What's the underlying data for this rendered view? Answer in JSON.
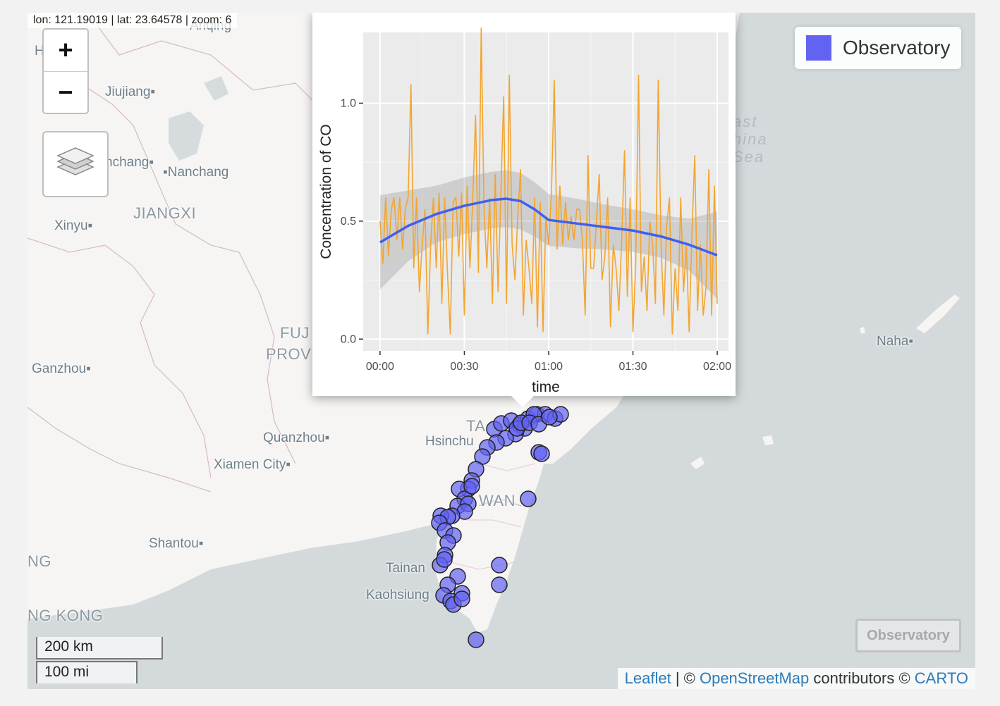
{
  "coords_readout": "lon: 121.19019 | lat: 23.64578 | zoom: 6",
  "zoom": {
    "in_label": "+",
    "out_label": "−"
  },
  "places": [
    {
      "id": "huangshi",
      "text": "H     shi",
      "big": false,
      "sea": false
    },
    {
      "id": "anqing",
      "text": "Anqing",
      "big": false,
      "sea": false
    },
    {
      "id": "jiujiang",
      "text": "Jiujiang",
      "big": false,
      "sea": false
    },
    {
      "id": "nanchang-a",
      "text": "nchang",
      "big": false,
      "sea": false
    },
    {
      "id": "nanchang-b",
      "text": "Nanchang",
      "big": false,
      "sea": false
    },
    {
      "id": "jiangxi",
      "text": "JIANGXI",
      "big": true,
      "sea": false
    },
    {
      "id": "xinyu",
      "text": "Xinyu",
      "big": false,
      "sea": false
    },
    {
      "id": "fujian",
      "text": "FUJ",
      "big": true,
      "sea": false
    },
    {
      "id": "province",
      "text": "PROV",
      "big": true,
      "sea": false
    },
    {
      "id": "ganzhou",
      "text": "Ganzhou",
      "big": false,
      "sea": false
    },
    {
      "id": "quanzhou",
      "text": "Quanzhou",
      "big": false,
      "sea": false
    },
    {
      "id": "xiamen",
      "text": "Xiamen City",
      "big": false,
      "sea": false
    },
    {
      "id": "shantou",
      "text": "Shantou",
      "big": false,
      "sea": false
    },
    {
      "id": "guangdong",
      "text": "NG",
      "big": true,
      "sea": false
    },
    {
      "id": "hongkong",
      "text": "NG KONG",
      "big": true,
      "sea": false
    },
    {
      "id": "taipei",
      "text": "TA",
      "big": true,
      "sea": false
    },
    {
      "id": "hsinchu",
      "text": "Hsinchu",
      "big": false,
      "sea": false
    },
    {
      "id": "taiwan",
      "text": "WAN",
      "big": true,
      "sea": false
    },
    {
      "id": "tainan",
      "text": "Tainan",
      "big": false,
      "sea": false
    },
    {
      "id": "kaohsiung",
      "text": "Kaohsiung",
      "big": false,
      "sea": false
    },
    {
      "id": "naha",
      "text": "Naha",
      "big": false,
      "sea": false
    },
    {
      "id": "east-china-sea",
      "text": "ast\nhina\nSea",
      "big": false,
      "sea": true
    }
  ],
  "legend": {
    "label": "Observatory",
    "color": "#6363f2"
  },
  "layer_toggle_label": "Observatory",
  "scale": {
    "km": "200 km",
    "mi": "100 mi"
  },
  "attribution": {
    "leaflet": "Leaflet",
    "sep1": " | © ",
    "osm": "OpenStreetMap",
    "mid": " contributors © ",
    "carto": "CARTO"
  },
  "marker_color": "#6363f2",
  "chart_data": {
    "type": "line",
    "xlabel": "time",
    "ylabel": "Concentration of CO",
    "x_tick_labels": [
      "00:00",
      "00:30",
      "01:00",
      "01:30",
      "02:00"
    ],
    "y_tick_labels": [
      "0.0",
      "0.5",
      "1.0"
    ],
    "xlim_minutes": [
      -6,
      124
    ],
    "ylim": [
      -0.05,
      1.3
    ],
    "series": [
      {
        "style": "raw",
        "color": "#f3a530",
        "x_minutes": [
          0,
          1,
          2,
          3,
          4,
          5,
          6,
          7,
          8,
          9,
          10,
          11,
          12,
          13,
          14,
          15,
          16,
          17,
          18,
          19,
          20,
          21,
          22,
          23,
          24,
          25,
          26,
          27,
          28,
          29,
          30,
          31,
          32,
          33,
          34,
          35,
          36,
          37,
          38,
          39,
          40,
          41,
          42,
          43,
          44,
          45,
          46,
          47,
          48,
          49,
          50,
          51,
          52,
          53,
          54,
          55,
          56,
          57,
          58,
          59,
          60,
          61,
          62,
          63,
          64,
          65,
          66,
          67,
          68,
          69,
          70,
          71,
          72,
          73,
          74,
          75,
          76,
          77,
          78,
          79,
          80,
          81,
          82,
          83,
          84,
          85,
          86,
          87,
          88,
          89,
          90,
          91,
          92,
          93,
          94,
          95,
          96,
          97,
          98,
          99,
          100,
          101,
          102,
          103,
          104,
          105,
          106,
          107,
          108,
          109,
          110,
          111,
          112,
          113,
          114,
          115,
          116,
          117,
          118,
          119,
          120
        ],
        "values": [
          0.5,
          0.32,
          0.6,
          0.35,
          0.55,
          0.6,
          0.42,
          0.6,
          0.38,
          0.55,
          0.6,
          1.08,
          0.3,
          0.6,
          0.2,
          0.4,
          0.55,
          0.02,
          0.4,
          0.6,
          0.3,
          0.62,
          0.15,
          0.6,
          0.28,
          0.02,
          0.58,
          0.6,
          0.35,
          0.62,
          0.1,
          0.65,
          0.3,
          0.6,
          0.95,
          0.28,
          1.32,
          0.55,
          0.3,
          0.6,
          0.15,
          0.7,
          0.2,
          0.62,
          1.03,
          0.15,
          1.12,
          0.4,
          0.25,
          0.52,
          0.72,
          0.1,
          0.42,
          0.3,
          0.15,
          0.6,
          0.05,
          0.58,
          0.03,
          0.52,
          0.4,
          0.62,
          1.1,
          0.38,
          0.65,
          0.4,
          0.58,
          0.42,
          0.52,
          0.42,
          0.55,
          0.55,
          0.42,
          0.1,
          0.78,
          0.3,
          0.3,
          0.5,
          0.7,
          0.25,
          0.35,
          0.6,
          0.05,
          0.4,
          0.3,
          0.12,
          0.42,
          0.8,
          0.18,
          0.6,
          0.03,
          0.32,
          1.12,
          0.2,
          0.35,
          0.12,
          0.5,
          0.4,
          0.15,
          1.1,
          0.4,
          0.1,
          0.48,
          0.6,
          0.02,
          0.3,
          0.12,
          0.6,
          0.2,
          0.4,
          0.03,
          0.45,
          0.78,
          0.12,
          0.4,
          0.1,
          0.22,
          0.72,
          0.1,
          0.65,
          0.15
        ]
      },
      {
        "style": "smooth",
        "color": "#3f5ff0",
        "band_color": "#999999",
        "x_minutes": [
          0,
          10,
          20,
          30,
          40,
          45,
          50,
          55,
          60,
          70,
          80,
          90,
          100,
          110,
          120
        ],
        "values": [
          0.41,
          0.48,
          0.53,
          0.565,
          0.59,
          0.595,
          0.585,
          0.55,
          0.505,
          0.49,
          0.475,
          0.46,
          0.435,
          0.4,
          0.355
        ],
        "lower": [
          0.21,
          0.33,
          0.41,
          0.445,
          0.47,
          0.475,
          0.465,
          0.435,
          0.395,
          0.385,
          0.38,
          0.37,
          0.345,
          0.29,
          0.17
        ],
        "upper": [
          0.61,
          0.63,
          0.65,
          0.685,
          0.71,
          0.715,
          0.705,
          0.665,
          0.615,
          0.595,
          0.57,
          0.55,
          0.525,
          0.51,
          0.54
        ]
      }
    ]
  }
}
